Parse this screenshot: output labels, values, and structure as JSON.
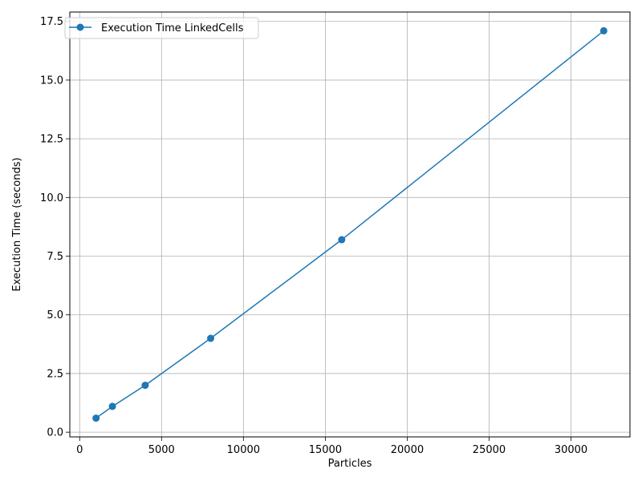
{
  "chart_data": {
    "type": "line",
    "title": "",
    "xlabel": "Particles",
    "ylabel": "Execution Time (seconds)",
    "xlim": [
      -600,
      33600
    ],
    "ylim": [
      -0.2,
      17.9
    ],
    "x_ticks": [
      0,
      5000,
      10000,
      15000,
      20000,
      25000,
      30000
    ],
    "y_ticks": [
      0.0,
      2.5,
      5.0,
      7.5,
      10.0,
      12.5,
      15.0,
      17.5
    ],
    "x_tick_labels": [
      "0",
      "5000",
      "10000",
      "15000",
      "20000",
      "25000",
      "30000"
    ],
    "y_tick_labels": [
      "0.0",
      "2.5",
      "5.0",
      "7.5",
      "10.0",
      "12.5",
      "15.0",
      "17.5"
    ],
    "grid": true,
    "legend_position": "top-left",
    "series": [
      {
        "name": "Execution Time LinkedCells",
        "color": "#1f77b4",
        "marker": "circle",
        "x": [
          1000,
          2000,
          4000,
          8000,
          16000,
          32000
        ],
        "y": [
          0.6,
          1.1,
          2.0,
          4.0,
          8.2,
          17.1
        ]
      }
    ]
  }
}
